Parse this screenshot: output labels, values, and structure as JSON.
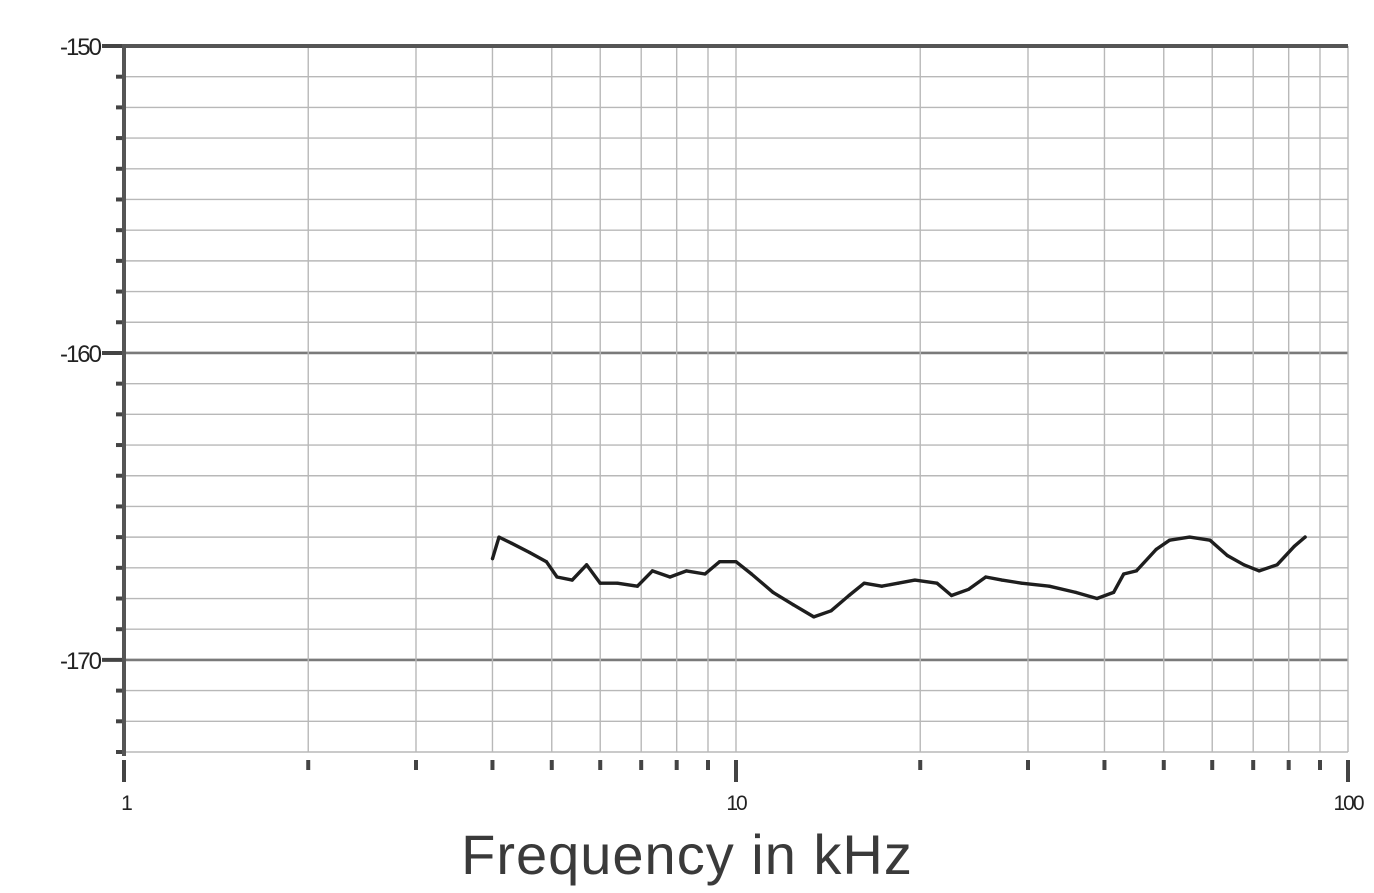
{
  "chart_data": {
    "type": "line",
    "xlabel": "Frequency in kHz",
    "ylabel": "",
    "title": "",
    "x_scale": "log",
    "xlim": [
      1,
      100
    ],
    "ylim": [
      -173,
      -150
    ],
    "y_ticks": [
      {
        "value": -150,
        "label": "-150"
      },
      {
        "value": -160,
        "label": "-160"
      },
      {
        "value": -170,
        "label": "-170"
      }
    ],
    "x_ticks": [
      {
        "value": 1,
        "label": "1"
      },
      {
        "value": 10,
        "label": "10"
      },
      {
        "value": 100,
        "label": "100"
      }
    ],
    "grid": true,
    "series": [
      {
        "color": "#1e1e1e",
        "points": [
          [
            4.0,
            -166.7
          ],
          [
            4.1,
            -166.0
          ],
          [
            4.3,
            -166.2
          ],
          [
            4.6,
            -166.5
          ],
          [
            4.9,
            -166.8
          ],
          [
            5.1,
            -167.3
          ],
          [
            5.4,
            -167.4
          ],
          [
            5.7,
            -166.9
          ],
          [
            6.0,
            -167.5
          ],
          [
            6.4,
            -167.5
          ],
          [
            6.9,
            -167.6
          ],
          [
            7.3,
            -167.1
          ],
          [
            7.8,
            -167.3
          ],
          [
            8.3,
            -167.1
          ],
          [
            8.9,
            -167.2
          ],
          [
            9.4,
            -166.8
          ],
          [
            10.0,
            -166.8
          ],
          [
            10.6,
            -167.2
          ],
          [
            11.5,
            -167.8
          ],
          [
            12.4,
            -168.2
          ],
          [
            13.4,
            -168.6
          ],
          [
            14.3,
            -168.4
          ],
          [
            15.3,
            -167.9
          ],
          [
            16.2,
            -167.5
          ],
          [
            17.3,
            -167.6
          ],
          [
            18.4,
            -167.5
          ],
          [
            19.6,
            -167.4
          ],
          [
            21.3,
            -167.5
          ],
          [
            22.5,
            -167.9
          ],
          [
            24.0,
            -167.7
          ],
          [
            25.6,
            -167.3
          ],
          [
            27.2,
            -167.4
          ],
          [
            29.3,
            -167.5
          ],
          [
            32.5,
            -167.6
          ],
          [
            35.9,
            -167.8
          ],
          [
            38.9,
            -168.0
          ],
          [
            41.4,
            -167.8
          ],
          [
            43.0,
            -167.2
          ],
          [
            45.1,
            -167.1
          ],
          [
            48.6,
            -166.4
          ],
          [
            51.1,
            -166.1
          ],
          [
            55.1,
            -166.0
          ],
          [
            59.5,
            -166.1
          ],
          [
            63.5,
            -166.6
          ],
          [
            67.6,
            -166.9
          ],
          [
            71.6,
            -167.1
          ],
          [
            76.6,
            -166.9
          ],
          [
            81.7,
            -166.3
          ],
          [
            85.1,
            -166.0
          ]
        ]
      }
    ]
  }
}
